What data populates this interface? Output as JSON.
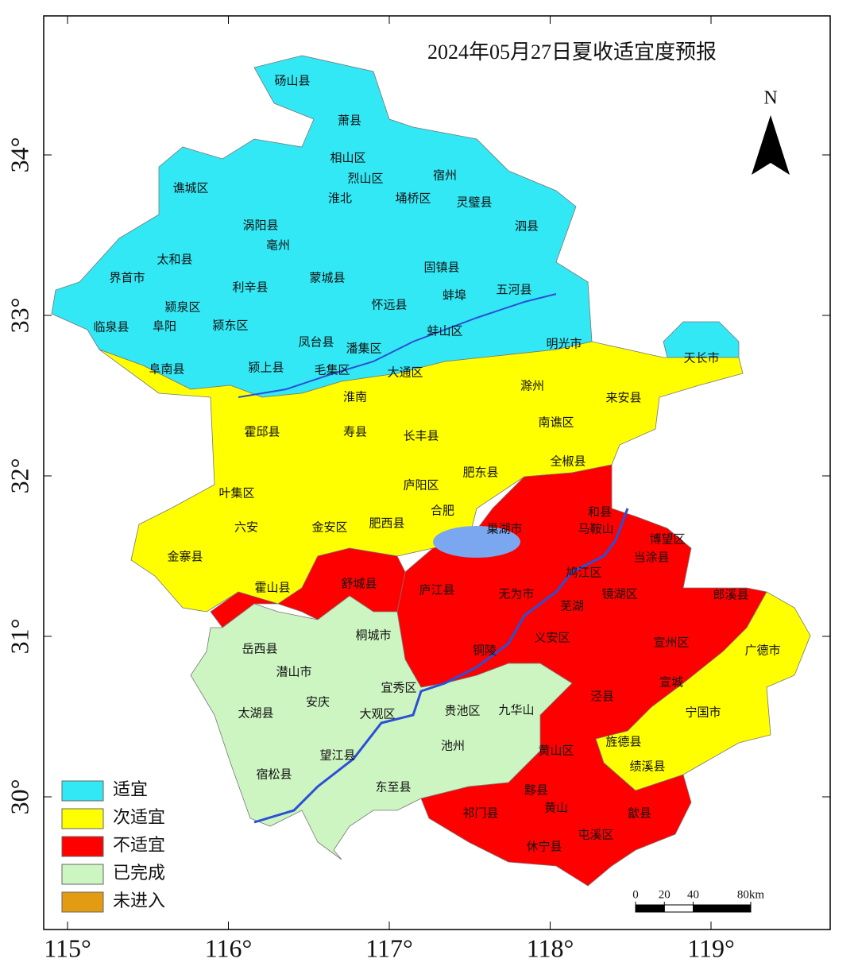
{
  "title": "2024年05月27日夏收适宜度预报",
  "north_label": "N",
  "legend": [
    {
      "label": "适宜",
      "color": "#33e8f5"
    },
    {
      "label": "次适宜",
      "color": "#ffff00"
    },
    {
      "label": "不适宜",
      "color": "#ff0000"
    },
    {
      "label": "已完成",
      "color": "#cdf5c2"
    },
    {
      "label": "未进入",
      "color": "#e39b12"
    }
  ],
  "places": [
    "砀山县",
    "萧县",
    "相山区",
    "烈山区",
    "淮北",
    "宿州",
    "埇桥区",
    "灵璧县",
    "谯城区",
    "涡阳县",
    "亳州",
    "泗县",
    "太和县",
    "固镇县",
    "界首市",
    "利辛县",
    "蒙城县",
    "五河县",
    "颍泉区",
    "怀远县",
    "蚌埠",
    "临泉县",
    "阜阳",
    "颍东区",
    "蚌山区",
    "凤台县",
    "潘集区",
    "明光市",
    "天长市",
    "阜南县",
    "颍上县",
    "毛集区",
    "大通区",
    "淮南",
    "滁州",
    "来安县",
    "霍邱县",
    "寿县",
    "长丰县",
    "南谯区",
    "肥东县",
    "全椒县",
    "庐阳区",
    "叶集区",
    "合肥",
    "巢湖市",
    "和县",
    "六安",
    "金安区",
    "肥西县",
    "马鞍山",
    "博望区",
    "当涂县",
    "金寨县",
    "鸠江区",
    "霍山县",
    "舒城县",
    "庐江县",
    "无为市",
    "镜湖区",
    "芜湖",
    "郎溪县",
    "桐城市",
    "义安区",
    "宣州区",
    "岳西县",
    "铜陵",
    "广德市",
    "潜山市",
    "宜秀区",
    "宣城",
    "安庆",
    "泾县",
    "贵池区",
    "九华山",
    "太湖县",
    "大观区",
    "宁国市",
    "旌德县",
    "黄山区",
    "池州",
    "望江县",
    "绩溪县",
    "宿松县",
    "东至县",
    "黟县",
    "黄山",
    "祁门县",
    "歙县",
    "屯溪区",
    "休宁县"
  ],
  "x_axis": {
    "ticks": [
      {
        "value": 115,
        "label": "115°"
      },
      {
        "value": 116,
        "label": "116°"
      },
      {
        "value": 117,
        "label": "117°"
      },
      {
        "value": 118,
        "label": "118°"
      },
      {
        "value": 119,
        "label": "119°"
      }
    ]
  },
  "y_axis": {
    "ticks": [
      {
        "value": 30,
        "label": "30°"
      },
      {
        "value": 31,
        "label": "31°"
      },
      {
        "value": 32,
        "label": "32°"
      },
      {
        "value": 33,
        "label": "33°"
      },
      {
        "value": 34,
        "label": "34°"
      }
    ]
  },
  "scale_bar": {
    "ticks": [
      0,
      20,
      40,
      {
        "value": 80,
        "label": "80km"
      }
    ]
  }
}
